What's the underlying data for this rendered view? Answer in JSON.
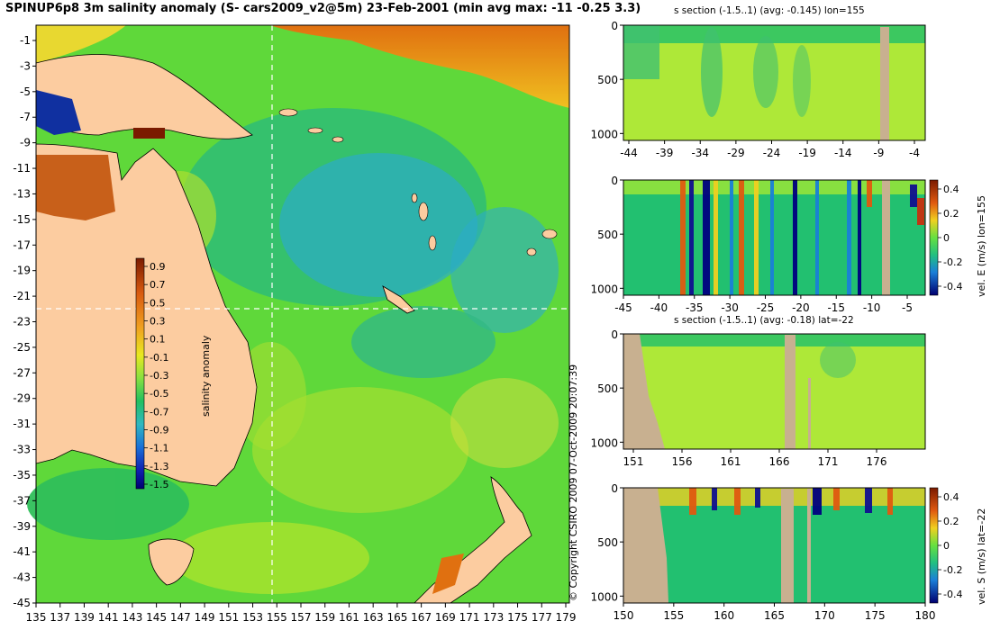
{
  "title": "SPINUP6p8 3m salinity anomaly (S- cars2009_v2@5m) 23-Feb-2001 (min avg max: -11 -0.25 3.3)",
  "copyright": "© Copyright CSIRO 2009  07-Oct-2009 20:07:39",
  "map": {
    "lat_ticks": [
      "-1",
      "-3",
      "-5",
      "-7",
      "-9",
      "-11",
      "-13",
      "-15",
      "-17",
      "-19",
      "-21",
      "-23",
      "-25",
      "-27",
      "-29",
      "-31",
      "-33",
      "-35",
      "-37",
      "-39",
      "-41",
      "-43",
      "-45"
    ],
    "lon_ticks": [
      "135",
      "137",
      "139",
      "141",
      "143",
      "145",
      "147",
      "149",
      "151",
      "153",
      "155",
      "157",
      "159",
      "161",
      "163",
      "165",
      "167",
      "169",
      "171",
      "173",
      "175",
      "177",
      "179"
    ],
    "crosshair_lon": 155,
    "crosshair_lat": -22,
    "colorbar": {
      "label": "salinity anomaly",
      "ticks": [
        "0.9",
        "0.7",
        "0.5",
        "0.3",
        "0.1",
        "-0.1",
        "-0.3",
        "-0.5",
        "-0.7",
        "-0.9",
        "-1.1",
        "-1.3",
        "-1.5"
      ]
    }
  },
  "panels": [
    {
      "title": "s section (-1.5..1) (avg: -0.145) lon=155",
      "x_ticks": [
        "-44",
        "-39",
        "-34",
        "-29",
        "-24",
        "-19",
        "-14",
        "-9",
        "-4"
      ],
      "y_ticks": [
        "0",
        "500",
        "1000"
      ],
      "colorbar": null
    },
    {
      "title": "",
      "x_ticks": [
        "-45",
        "-40",
        "-35",
        "-30",
        "-25",
        "-20",
        "-15",
        "-10",
        "-5"
      ],
      "y_ticks": [
        "0",
        "500",
        "1000"
      ],
      "colorbar": {
        "label": "vel. E (m/s) lon=155",
        "ticks": [
          "0.4",
          "0.2",
          "0",
          "-0.2",
          "-0.4"
        ]
      }
    },
    {
      "title": "s section (-1.5..1) (avg: -0.18) lat=-22",
      "x_ticks": [
        "151",
        "156",
        "161",
        "166",
        "171",
        "176"
      ],
      "y_ticks": [
        "0",
        "500",
        "1000"
      ],
      "colorbar": null
    },
    {
      "title": "",
      "x_ticks": [
        "150",
        "155",
        "160",
        "165",
        "170",
        "175",
        "180"
      ],
      "y_ticks": [
        "0",
        "500",
        "1000"
      ],
      "colorbar": {
        "label": "vel. S (m/s) lat=-22",
        "ticks": [
          "0.4",
          "0.2",
          "0",
          "-0.2",
          "-0.4"
        ]
      }
    }
  ],
  "colors": {
    "land": "#fccca0",
    "section_land": "#c8b090",
    "ocean_mid": "#66e833",
    "ocean_low": "#22bb66",
    "ocean_blue": "#2aa0e0",
    "anomaly_high": "#e07010"
  }
}
